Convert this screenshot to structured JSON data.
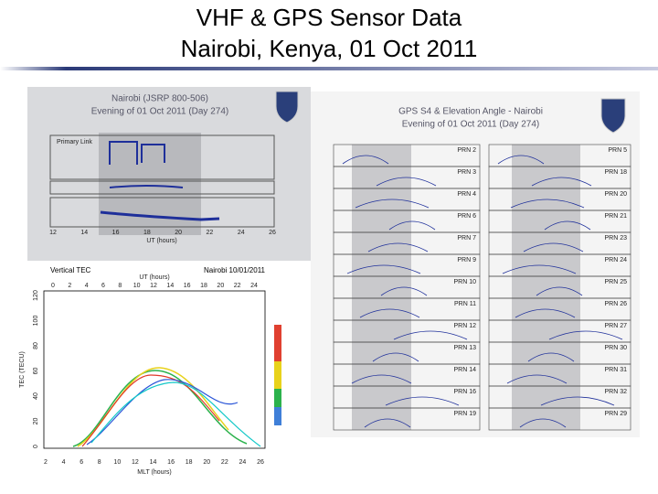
{
  "header": {
    "title_line1": "VHF & GPS Sensor Data",
    "title_line2": "Nairobi, Kenya, 01 Oct 2011"
  },
  "vhf_panel": {
    "title": "Nairobi (JSRP 800-506)",
    "subtitle": "Evening of 01 Oct 2011 (Day 274)",
    "link_label": "Primary Link",
    "x_label": "UT (hours)",
    "x_ticks": [
      12,
      14,
      16,
      18,
      20,
      22,
      24,
      26
    ]
  },
  "tec_panel": {
    "title": "Vertical TEC",
    "location_date": "Nairobi 10/01/2011",
    "top_axis_label": "UT (hours)",
    "top_ticks": [
      0,
      2,
      4,
      6,
      8,
      10,
      12,
      14,
      16,
      18,
      20,
      22,
      24
    ],
    "bottom_axis_label": "MLT (hours)",
    "bottom_ticks": [
      2,
      4,
      6,
      8,
      10,
      12,
      14,
      16,
      18,
      20,
      22,
      24,
      26
    ],
    "y_axis_label": "TEC (TECU)",
    "y_ticks": [
      0,
      20,
      40,
      60,
      80,
      100,
      120
    ]
  },
  "gps_panel": {
    "title": "GPS S4 & Elevation Angle - Nairobi",
    "subtitle": "Evening of 01 Oct 2011 (Day 274)",
    "left_prns": [
      "PRN 2",
      "PRN 3",
      "PRN 4",
      "PRN 6",
      "PRN 7",
      "PRN 9",
      "PRN 10",
      "PRN 11",
      "PRN 12",
      "PRN 13",
      "PRN 14",
      "PRN 16",
      "PRN 19"
    ],
    "right_prns": [
      "PRN 5",
      "PRN 18",
      "PRN 20",
      "PRN 21",
      "PRN 23",
      "PRN 24",
      "PRN 25",
      "PRN 26",
      "PRN 27",
      "PRN 30",
      "PRN 31",
      "PRN 32",
      "PRN 29"
    ]
  }
}
